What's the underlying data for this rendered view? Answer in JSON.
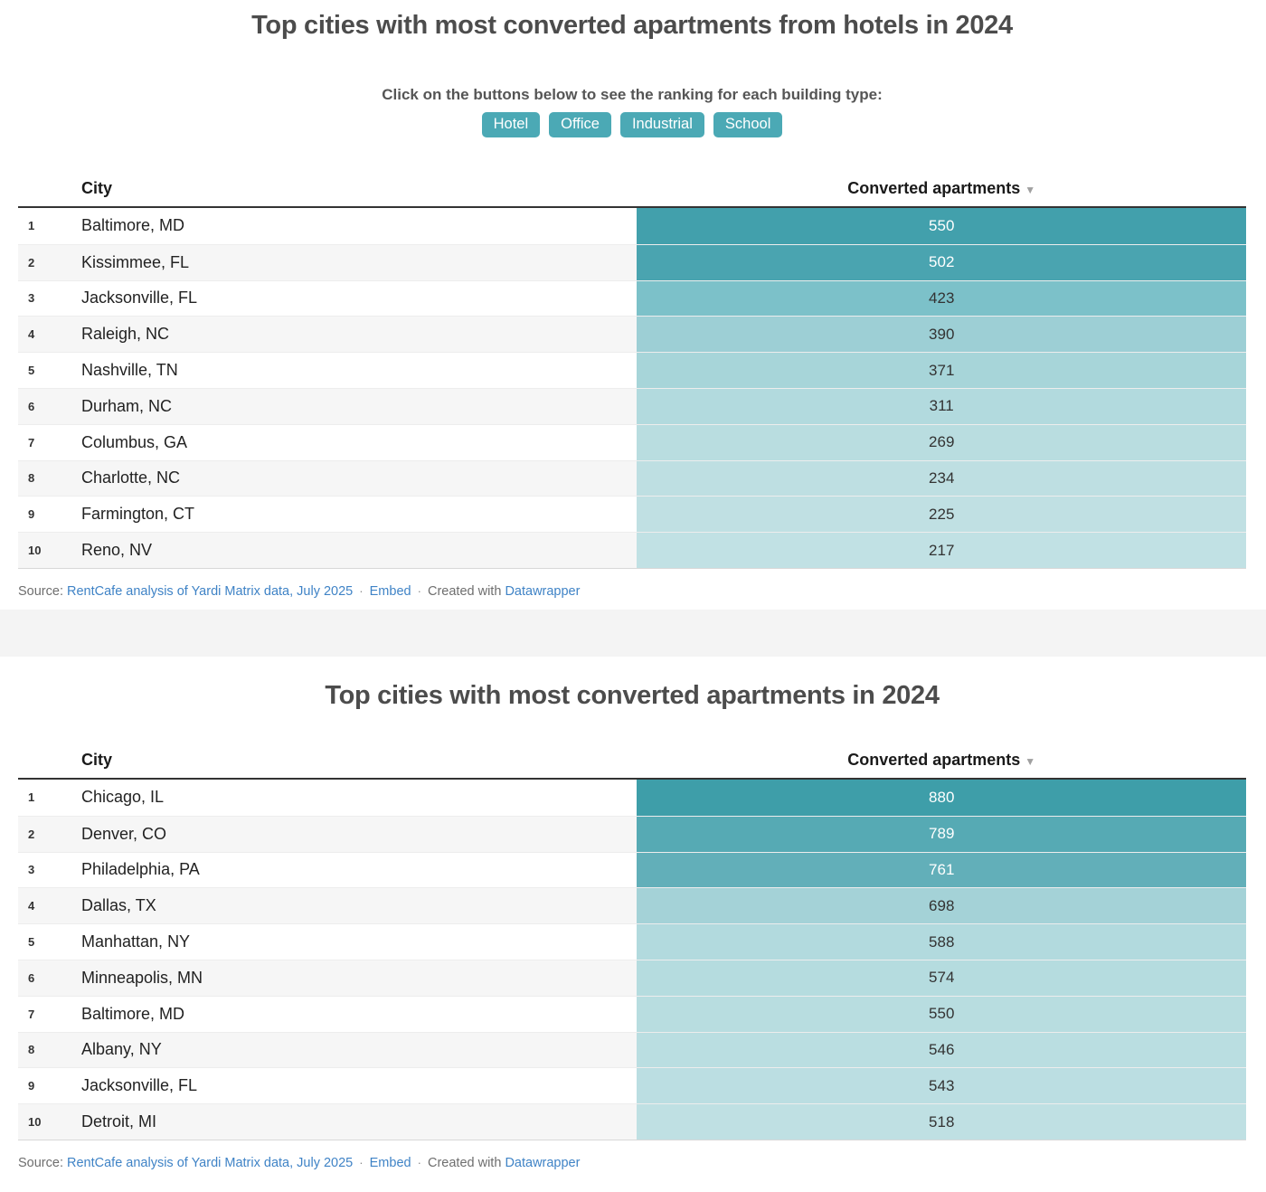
{
  "charts": [
    {
      "title": "Top cities with most converted apartments from hotels in 2024",
      "subtitle": "Click on the buttons below to see the ranking for each building type:",
      "buttons": [
        {
          "label": "Hotel"
        },
        {
          "label": "Office"
        },
        {
          "label": "Industrial"
        },
        {
          "label": "School"
        }
      ],
      "button_color": "#4ba9b5",
      "table": {
        "city_header": "City",
        "value_header": "Converted apartments",
        "sort_icon": "▼"
      },
      "rows": [
        {
          "rank": "1",
          "city": "Baltimore, MD",
          "value": "550",
          "bar_color": "#42a0ac",
          "text_color": "#ffffff"
        },
        {
          "rank": "2",
          "city": "Kissimmee, FL",
          "value": "502",
          "bar_color": "#4aa4b0",
          "text_color": "#ffffff"
        },
        {
          "rank": "3",
          "city": "Jacksonville, FL",
          "value": "423",
          "bar_color": "#7cc1c9",
          "text_color": "#333333"
        },
        {
          "rank": "4",
          "city": "Raleigh, NC",
          "value": "390",
          "bar_color": "#9dcfd5",
          "text_color": "#333333"
        },
        {
          "rank": "5",
          "city": "Nashville, TN",
          "value": "371",
          "bar_color": "#a7d5d9",
          "text_color": "#333333"
        },
        {
          "rank": "6",
          "city": "Durham, NC",
          "value": "311",
          "bar_color": "#b2dade",
          "text_color": "#333333"
        },
        {
          "rank": "7",
          "city": "Columbus, GA",
          "value": "269",
          "bar_color": "#b9dde0",
          "text_color": "#333333"
        },
        {
          "rank": "8",
          "city": "Charlotte, NC",
          "value": "234",
          "bar_color": "#bedfe2",
          "text_color": "#333333"
        },
        {
          "rank": "9",
          "city": "Farmington, CT",
          "value": "225",
          "bar_color": "#c0e0e3",
          "text_color": "#333333"
        },
        {
          "rank": "10",
          "city": "Reno, NV",
          "value": "217",
          "bar_color": "#c1e1e4",
          "text_color": "#333333"
        }
      ],
      "source": {
        "label": "Source:",
        "source_link": "RentCafe analysis of Yardi Matrix data, July 2025",
        "separator": "·",
        "embed_link": "Embed",
        "created_text": "Created with",
        "brand_link": "Datawrapper"
      }
    },
    {
      "title": "Top cities with most converted apartments in 2024",
      "table": {
        "city_header": "City",
        "value_header": "Converted apartments",
        "sort_icon": "▼"
      },
      "rows": [
        {
          "rank": "1",
          "city": "Chicago, IL",
          "value": "880",
          "bar_color": "#3e9ea9",
          "text_color": "#ffffff"
        },
        {
          "rank": "2",
          "city": "Denver, CO",
          "value": "789",
          "bar_color": "#56aab4",
          "text_color": "#ffffff"
        },
        {
          "rank": "3",
          "city": "Philadelphia, PA",
          "value": "761",
          "bar_color": "#62afb9",
          "text_color": "#ffffff"
        },
        {
          "rank": "4",
          "city": "Dallas, TX",
          "value": "698",
          "bar_color": "#a4d2d7",
          "text_color": "#333333"
        },
        {
          "rank": "5",
          "city": "Manhattan, NY",
          "value": "588",
          "bar_color": "#b2dade",
          "text_color": "#333333"
        },
        {
          "rank": "6",
          "city": "Minneapolis, MN",
          "value": "574",
          "bar_color": "#b5dcdf",
          "text_color": "#333333"
        },
        {
          "rank": "7",
          "city": "Baltimore, MD",
          "value": "550",
          "bar_color": "#b8dde0",
          "text_color": "#333333"
        },
        {
          "rank": "8",
          "city": "Albany, NY",
          "value": "546",
          "bar_color": "#badee1",
          "text_color": "#333333"
        },
        {
          "rank": "9",
          "city": "Jacksonville, FL",
          "value": "543",
          "bar_color": "#bbdee2",
          "text_color": "#333333"
        },
        {
          "rank": "10",
          "city": "Detroit, MI",
          "value": "518",
          "bar_color": "#bfe0e3",
          "text_color": "#333333"
        }
      ],
      "source": {
        "label": "Source:",
        "source_link": "RentCafe analysis of Yardi Matrix data, July 2025",
        "separator": "·",
        "embed_link": "Embed",
        "created_text": "Created with",
        "brand_link": "Datawrapper"
      }
    }
  ],
  "colors": {
    "accent_teal": "#4ba9b5",
    "link_blue": "#3f83c6",
    "title_gray": "#4c4c4c",
    "divider_gray": "#f4f4f4",
    "zebra_gray": "#f6f6f6",
    "header_border": "#333333"
  },
  "chart_data": [
    {
      "type": "table",
      "title": "Top cities with most converted apartments from hotels in 2024",
      "subtitle": "Click on the buttons below to see the ranking for each building type:",
      "controls": [
        "Hotel",
        "Office",
        "Industrial",
        "School"
      ],
      "columns": [
        "City",
        "Converted apartments"
      ],
      "sort": "Converted apartments descending",
      "categories": [
        "Baltimore, MD",
        "Kissimmee, FL",
        "Jacksonville, FL",
        "Raleigh, NC",
        "Nashville, TN",
        "Durham, NC",
        "Columbus, GA",
        "Charlotte, NC",
        "Farmington, CT",
        "Reno, NV"
      ],
      "values": [
        550,
        502,
        423,
        390,
        371,
        311,
        269,
        234,
        225,
        217
      ],
      "value_encoding": "cell background shaded teal by value (darker = higher)",
      "source": "RentCafe analysis of Yardi Matrix data, July 2025"
    },
    {
      "type": "table",
      "title": "Top cities with most converted apartments in 2024",
      "columns": [
        "City",
        "Converted apartments"
      ],
      "sort": "Converted apartments descending",
      "categories": [
        "Chicago, IL",
        "Denver, CO",
        "Philadelphia, PA",
        "Dallas, TX",
        "Manhattan, NY",
        "Minneapolis, MN",
        "Baltimore, MD",
        "Albany, NY",
        "Jacksonville, FL",
        "Detroit, MI"
      ],
      "values": [
        880,
        789,
        761,
        698,
        588,
        574,
        550,
        546,
        543,
        518
      ],
      "value_encoding": "cell background shaded teal by value (darker = higher)",
      "source": "RentCafe analysis of Yardi Matrix data, July 2025"
    }
  ]
}
